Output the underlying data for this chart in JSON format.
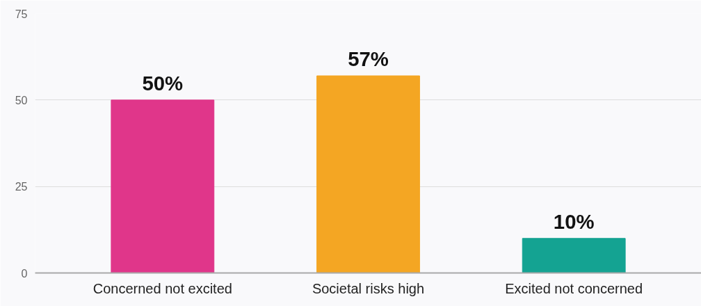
{
  "chart_data": {
    "type": "bar",
    "categories": [
      "Concerned not excited",
      "Societal risks high",
      "Excited not concerned"
    ],
    "values": [
      50,
      57,
      10
    ],
    "colors": [
      "#e0368a",
      "#f4a623",
      "#14a392"
    ],
    "value_labels": [
      "50%",
      "57%",
      "10%"
    ],
    "ylim": [
      0,
      75
    ],
    "yticks": [
      0,
      25,
      50,
      75
    ],
    "grid": "y"
  }
}
